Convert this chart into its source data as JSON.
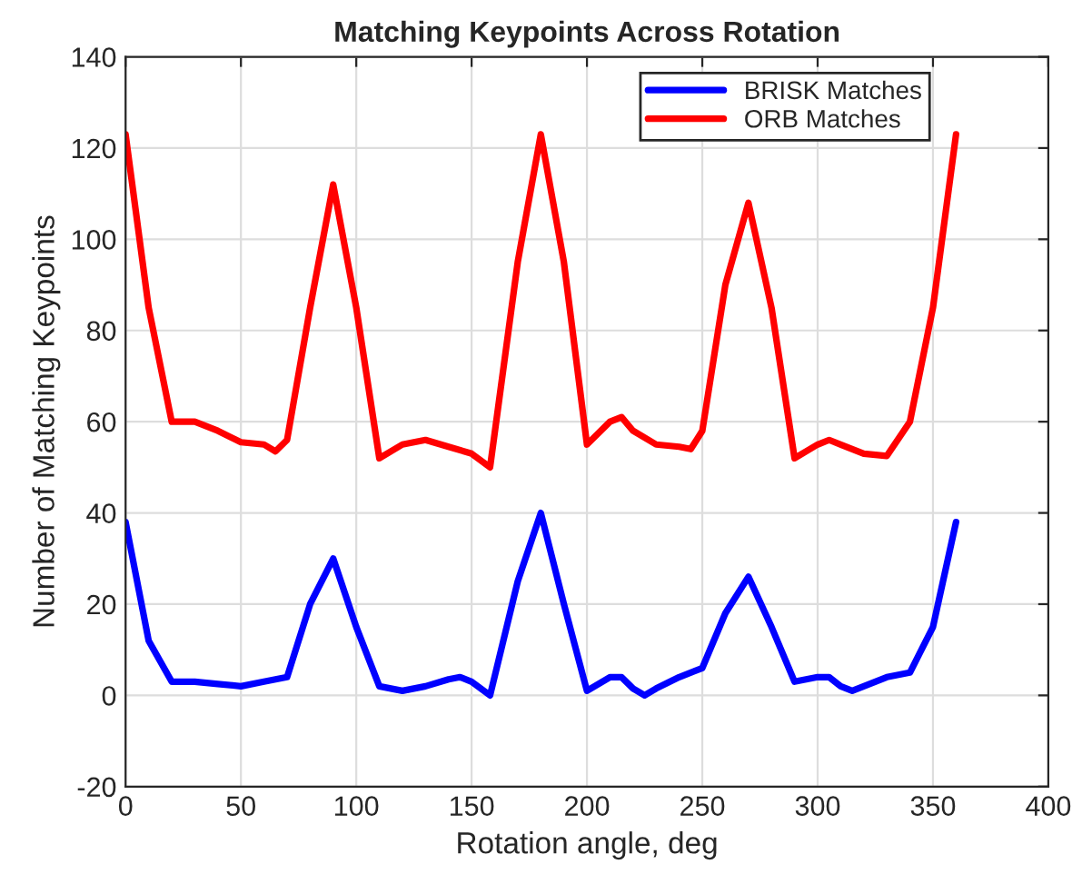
{
  "chart_data": {
    "type": "line",
    "title": "Matching Keypoints Across Rotation",
    "xlabel": "Rotation angle, deg",
    "ylabel": "Number of Matching Keypoints",
    "xlim": [
      0,
      400
    ],
    "xticks": [
      0,
      50,
      100,
      150,
      200,
      250,
      300,
      350,
      400
    ],
    "ylim": [
      -20,
      140
    ],
    "yticks": [
      -20,
      0,
      20,
      40,
      60,
      80,
      100,
      120,
      140
    ],
    "grid": true,
    "legend": "top right",
    "marker": "none",
    "line_style": "solid",
    "series": [
      {
        "name": "BRISK Matches",
        "color": "#0000ff",
        "x": [
          0,
          10,
          20,
          30,
          40,
          50,
          60,
          70,
          80,
          90,
          100,
          110,
          120,
          130,
          140,
          145,
          150,
          158,
          170,
          180,
          190,
          200,
          210,
          215,
          220,
          225,
          230,
          240,
          250,
          260,
          270,
          280,
          290,
          300,
          305,
          310,
          315,
          320,
          330,
          340,
          350,
          360
        ],
        "values": [
          38,
          12,
          3,
          3,
          2.5,
          2,
          3,
          4,
          20,
          30,
          15,
          2,
          1,
          2,
          3.5,
          4,
          3,
          0,
          25,
          40,
          20,
          1,
          4,
          4,
          1.5,
          0,
          1.5,
          4,
          6,
          18,
          26,
          15,
          3,
          4,
          4,
          2,
          1,
          2,
          4,
          5,
          15,
          38
        ]
      },
      {
        "name": "ORB Matches",
        "color": "#ff0000",
        "x": [
          0,
          10,
          20,
          30,
          40,
          50,
          60,
          65,
          70,
          80,
          90,
          100,
          110,
          120,
          130,
          140,
          150,
          158,
          170,
          180,
          190,
          200,
          210,
          215,
          220,
          230,
          240,
          245,
          250,
          260,
          270,
          280,
          290,
          300,
          305,
          310,
          320,
          330,
          340,
          350,
          360
        ],
        "values": [
          123,
          85,
          60,
          60,
          58,
          55.5,
          55,
          53.5,
          56,
          85,
          112,
          85,
          52,
          55,
          56,
          54.5,
          53,
          50,
          95,
          123,
          95,
          55,
          60,
          61,
          58,
          55,
          54.5,
          54,
          58,
          90,
          108,
          85,
          52,
          55,
          56,
          55,
          53,
          52.5,
          60,
          85,
          123
        ]
      }
    ]
  }
}
